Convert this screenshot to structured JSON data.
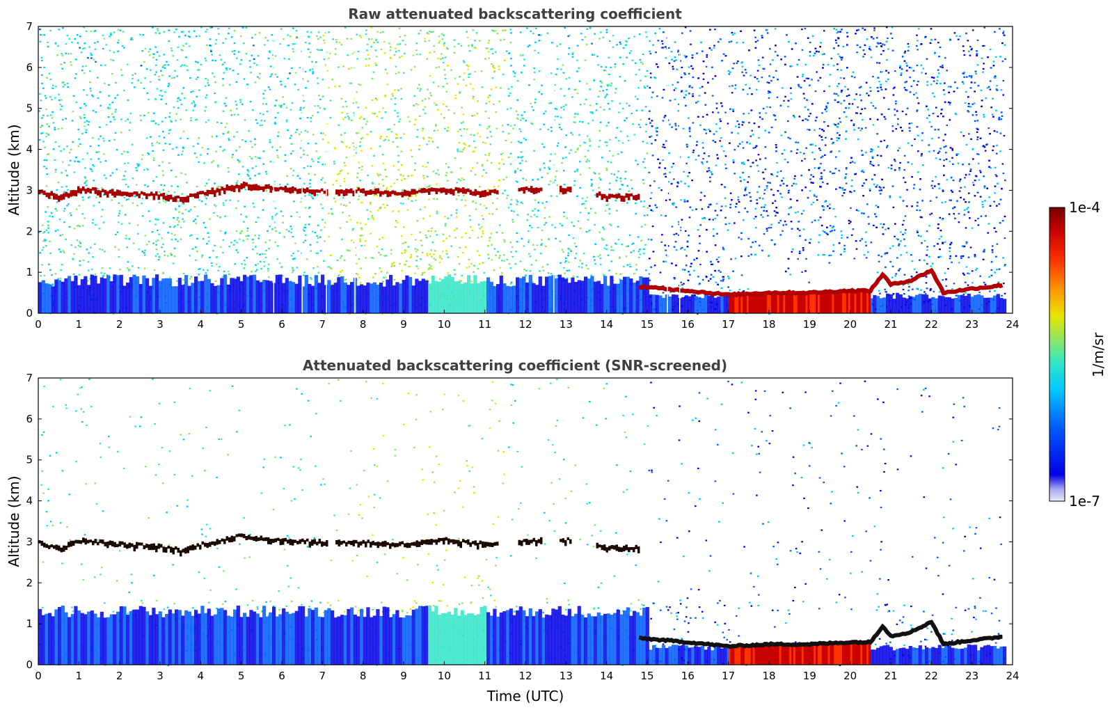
{
  "chart_data": [
    {
      "type": "heatmap",
      "title": "Raw attenuated backscattering coefficient",
      "xlabel": "",
      "ylabel": "Altitude (km)",
      "xlim": [
        0,
        24
      ],
      "ylim": [
        0,
        7
      ],
      "x_ticks": [
        "0",
        "1",
        "2",
        "3",
        "4",
        "5",
        "6",
        "7",
        "8",
        "9",
        "10",
        "11",
        "12",
        "13",
        "14",
        "15",
        "16",
        "17",
        "18",
        "19",
        "20",
        "21",
        "22",
        "23",
        "24"
      ],
      "y_ticks": [
        "0",
        "1",
        "2",
        "3",
        "4",
        "5",
        "6",
        "7"
      ],
      "features": {
        "cloud_layer": [
          [
            0,
            2.95
          ],
          [
            0.5,
            2.8
          ],
          [
            1,
            3.0
          ],
          [
            2,
            2.9
          ],
          [
            3,
            2.85
          ],
          [
            3.5,
            2.75
          ],
          [
            4,
            2.9
          ],
          [
            5,
            3.1
          ],
          [
            6,
            3.0
          ],
          [
            7,
            2.95
          ],
          [
            8,
            2.95
          ],
          [
            9,
            2.9
          ],
          [
            10,
            3.0
          ],
          [
            11,
            2.9
          ],
          [
            12,
            3.0
          ],
          [
            13,
            3.0
          ],
          [
            14,
            2.82
          ],
          [
            14.8,
            2.82
          ]
        ],
        "boundary_layer": [
          [
            14.8,
            0.65
          ],
          [
            16,
            0.55
          ],
          [
            17,
            0.45
          ],
          [
            18,
            0.5
          ],
          [
            19,
            0.5
          ],
          [
            20,
            0.55
          ],
          [
            20.5,
            0.55
          ],
          [
            20.8,
            0.95
          ],
          [
            21,
            0.7
          ],
          [
            21.5,
            0.8
          ],
          [
            22,
            1.05
          ],
          [
            22.3,
            0.5
          ],
          [
            23,
            0.6
          ],
          [
            23.5,
            0.65
          ],
          [
            23.8,
            0.7
          ]
        ],
        "dense_low_cloud": [
          [
            17,
            20.5
          ]
        ],
        "signal_gaps": [
          5.8,
          6.5,
          7.1,
          7.8,
          12.7,
          15.5,
          15.8
        ]
      }
    },
    {
      "type": "heatmap",
      "title": "Attenuated backscattering coefficient (SNR-screened)",
      "xlabel": "Time (UTC)",
      "ylabel": "Altitude (km)",
      "xlim": [
        0,
        24
      ],
      "ylim": [
        0,
        7
      ],
      "x_ticks": [
        "0",
        "1",
        "2",
        "3",
        "4",
        "5",
        "6",
        "7",
        "8",
        "9",
        "10",
        "11",
        "12",
        "13",
        "14",
        "15",
        "16",
        "17",
        "18",
        "19",
        "20",
        "21",
        "22",
        "23",
        "24"
      ],
      "y_ticks": [
        "0",
        "1",
        "2",
        "3",
        "4",
        "5",
        "6",
        "7"
      ],
      "features": {
        "cloud_layer": [
          [
            0,
            2.95
          ],
          [
            0.5,
            2.8
          ],
          [
            1,
            3.0
          ],
          [
            2,
            2.9
          ],
          [
            3,
            2.85
          ],
          [
            3.5,
            2.75
          ],
          [
            4,
            2.9
          ],
          [
            5,
            3.1
          ],
          [
            6,
            3.0
          ],
          [
            7,
            2.95
          ],
          [
            8,
            2.95
          ],
          [
            9,
            2.9
          ],
          [
            10,
            3.0
          ],
          [
            11,
            2.9
          ],
          [
            12,
            3.0
          ],
          [
            13,
            3.0
          ],
          [
            14,
            2.82
          ],
          [
            14.8,
            2.82
          ]
        ],
        "boundary_layer": [
          [
            14.8,
            0.65
          ],
          [
            16,
            0.55
          ],
          [
            17,
            0.45
          ],
          [
            18,
            0.5
          ],
          [
            19,
            0.5
          ],
          [
            20,
            0.55
          ],
          [
            20.5,
            0.55
          ],
          [
            20.8,
            0.95
          ],
          [
            21,
            0.7
          ],
          [
            21.5,
            0.8
          ],
          [
            22,
            1.05
          ],
          [
            22.3,
            0.5
          ],
          [
            23,
            0.6
          ],
          [
            23.5,
            0.65
          ],
          [
            23.8,
            0.7
          ]
        ],
        "dense_low_cloud": [
          [
            17,
            20.5
          ]
        ]
      }
    }
  ],
  "colorbar": {
    "label": "1/m/sr",
    "max_label": "1e-4",
    "min_label": "1e-7",
    "scale": "log",
    "range": [
      1e-07,
      0.0001
    ],
    "colormap": [
      "#e8e8f6",
      "#aaaaf2",
      "#0000e6",
      "#005aff",
      "#00c8ff",
      "#32e6c8",
      "#8ce664",
      "#e6e600",
      "#ff9600",
      "#ff3200",
      "#c80000",
      "#780000"
    ]
  }
}
